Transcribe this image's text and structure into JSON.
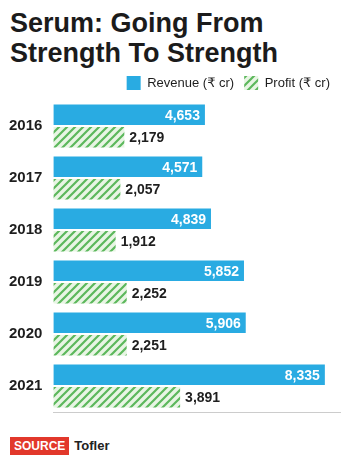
{
  "chart_data": {
    "type": "bar",
    "orientation": "horizontal",
    "title": "Serum: Going From Strength To Strength",
    "categories": [
      "2016",
      "2017",
      "2018",
      "2019",
      "2020",
      "2021"
    ],
    "series": [
      {
        "name": "Revenue (₹ cr)",
        "color": "#29abe2",
        "values": [
          4653,
          4571,
          4839,
          5852,
          5906,
          8335
        ],
        "value_labels": [
          "4,653",
          "4,571",
          "4,839",
          "5,852",
          "5,906",
          "8,335"
        ]
      },
      {
        "name": "Profit (₹ cr)",
        "color": "#5cb85c",
        "values": [
          2179,
          2057,
          1912,
          2252,
          2251,
          3891
        ],
        "value_labels": [
          "2,179",
          "2,057",
          "1,912",
          "2,252",
          "2,251",
          "3,891"
        ]
      }
    ],
    "xlim": [
      0,
      8800
    ],
    "grid": false,
    "legend": "upper right",
    "data_labels": true,
    "tick_labels": "y",
    "source": {
      "label": "SOURCE",
      "text": "Tofler"
    }
  }
}
